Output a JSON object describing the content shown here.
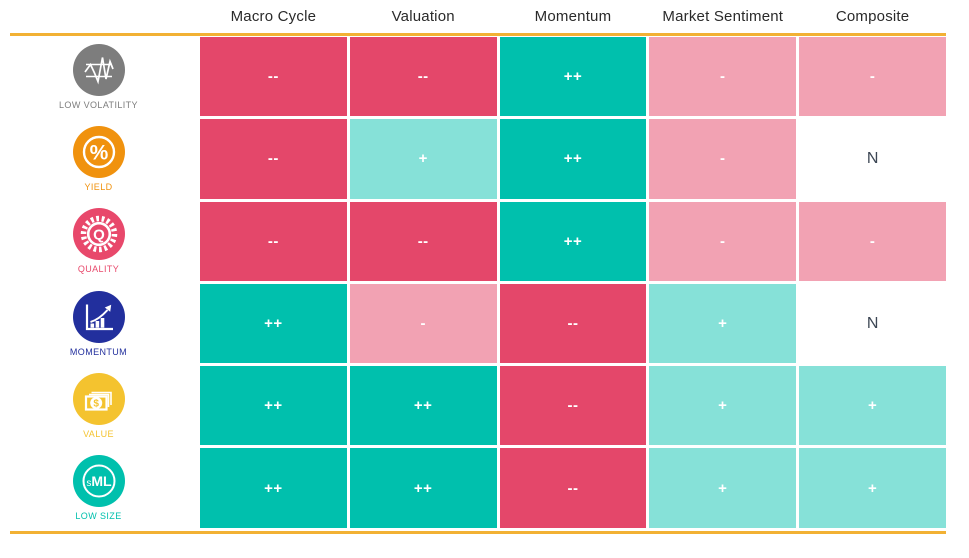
{
  "chart_data": {
    "type": "heatmap",
    "title": "",
    "columns": [
      "Macro Cycle",
      "Valuation",
      "Momentum",
      "Market Sentiment",
      "Composite"
    ],
    "rows": [
      "LOW VOLATILITY",
      "YIELD",
      "QUALITY",
      "MOMENTUM",
      "VALUE",
      "LOW SIZE"
    ],
    "values": [
      [
        "--",
        "--",
        "++",
        "-",
        "-"
      ],
      [
        "--",
        "+",
        "++",
        "-",
        "N"
      ],
      [
        "--",
        "--",
        "++",
        "-",
        "-"
      ],
      [
        "++",
        "-",
        "--",
        "+",
        "N"
      ],
      [
        "++",
        "++",
        "--",
        "+",
        "+"
      ],
      [
        "++",
        "++",
        "--",
        "+",
        "+"
      ]
    ],
    "legend_position": "none",
    "grid": false
  },
  "legend_styles": {
    "--": {
      "bg": "#E4476A",
      "fg": "#FFFFFF"
    },
    "-": {
      "bg": "#F2A2B3",
      "fg": "#FFFFFF"
    },
    "N": {
      "bg": "#FFFFFF",
      "fg": "#3C4654"
    },
    "+": {
      "bg": "#86E1D8",
      "fg": "#FFFFFF"
    },
    "++": {
      "bg": "#00C0AD",
      "fg": "#FFFFFF"
    }
  },
  "row_icons": [
    {
      "icon": "low-volatility-icon",
      "accent": "#7D7D7D"
    },
    {
      "icon": "yield-icon",
      "accent": "#F0920E"
    },
    {
      "icon": "quality-icon",
      "accent": "#E8486B"
    },
    {
      "icon": "momentum-icon",
      "accent": "#222F9D"
    },
    {
      "icon": "value-icon",
      "accent": "#F4C32F"
    },
    {
      "icon": "low-size-icon",
      "accent": "#00C0AD"
    }
  ],
  "rule_color": "#F2B134",
  "header_text_color": "#2A2A2A"
}
